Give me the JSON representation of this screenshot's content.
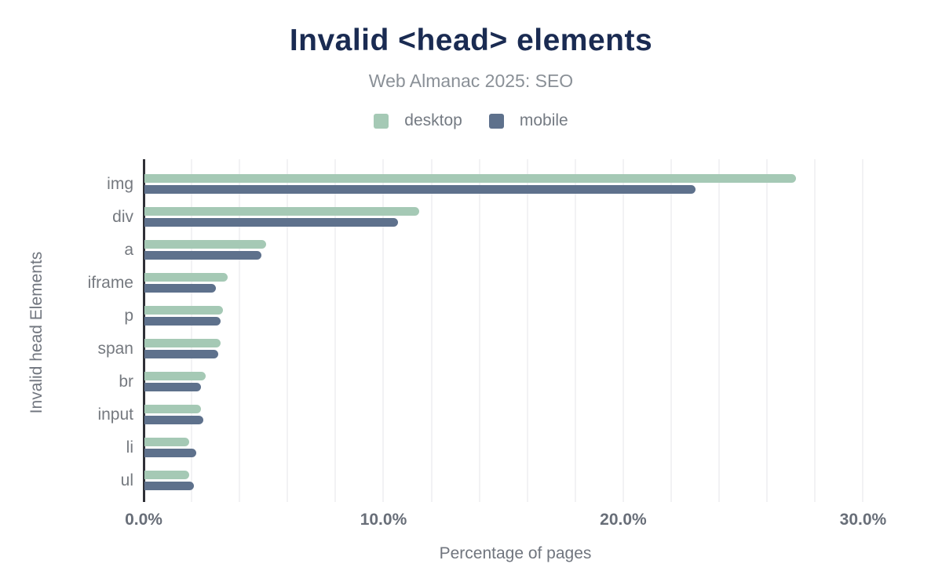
{
  "header": {
    "title": "Invalid <head> elements",
    "subtitle": "Web Almanac 2025: SEO"
  },
  "legend": [
    {
      "label": "desktop",
      "color": "#a5c9b5"
    },
    {
      "label": "mobile",
      "color": "#5e718c"
    }
  ],
  "colors": {
    "title": "#1a2b52",
    "subtitle": "#8a9097",
    "axis_text": "#70757e",
    "gridline": "#f2f2f4",
    "axis_line": "#2f3037",
    "desktop": "#a5c9b5",
    "mobile": "#5e718c"
  },
  "chart_data": {
    "type": "bar",
    "orientation": "horizontal",
    "title": "Invalid <head> elements",
    "subtitle": "Web Almanac 2025: SEO",
    "xlabel": "Percentage of pages",
    "ylabel": "Invalid head Elements",
    "categories": [
      "img",
      "div",
      "a",
      "iframe",
      "p",
      "span",
      "br",
      "input",
      "li",
      "ul"
    ],
    "series": [
      {
        "name": "desktop",
        "color": "#a5c9b5",
        "values": [
          27.2,
          11.5,
          5.1,
          3.5,
          3.3,
          3.2,
          2.6,
          2.4,
          1.9,
          1.9
        ]
      },
      {
        "name": "mobile",
        "color": "#5e718c",
        "values": [
          23.0,
          10.6,
          4.9,
          3.0,
          3.2,
          3.1,
          2.4,
          2.5,
          2.2,
          2.1
        ]
      }
    ],
    "xlim": [
      0,
      31
    ],
    "xticks": [
      {
        "value": 0,
        "label": "0.0%"
      },
      {
        "value": 10,
        "label": "10.0%"
      },
      {
        "value": 20,
        "label": "20.0%"
      },
      {
        "value": 30,
        "label": "30.0%"
      }
    ],
    "gridline_step": 2,
    "grid": true,
    "legend_position": "top",
    "value_format": "percent_of_pages"
  }
}
